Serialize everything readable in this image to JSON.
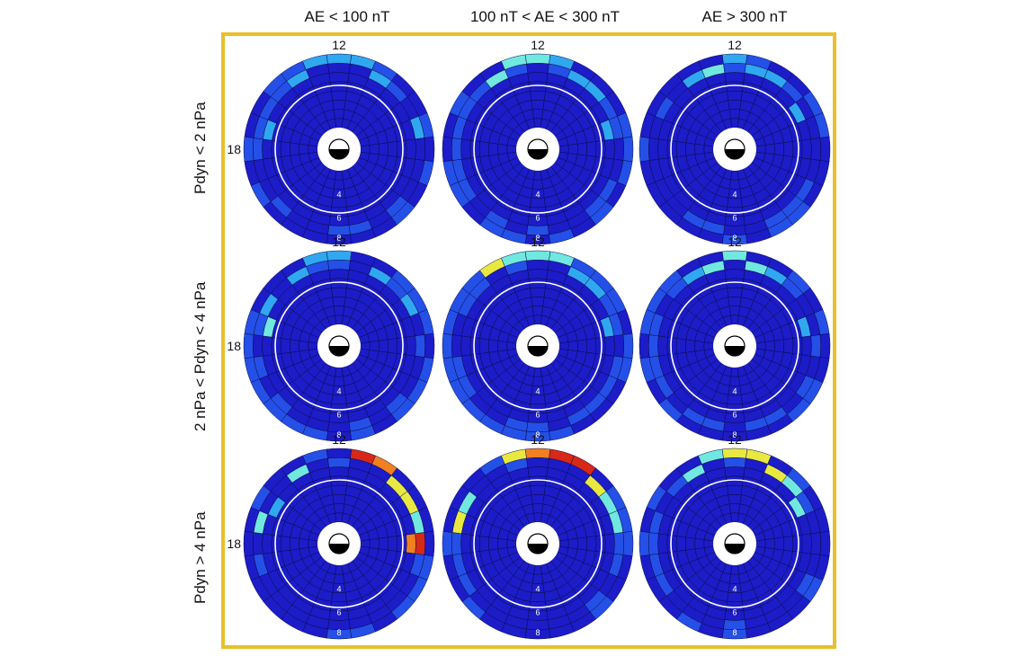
{
  "chart_data": {
    "type": "heatmap",
    "projection": "polar dial (MLT clock, 12 at top, 18 at left); white circle marks a reference ring",
    "columns": [
      "AE < 100 nT",
      "100 nT < AE < 300 nT",
      "AE > 300 nT"
    ],
    "rows": [
      "Pdyn < 2 nPa",
      "2 nPa < Pdyn < 4 nPa",
      "Pdyn > 4 nPa"
    ],
    "dial_labels": {
      "top": "12",
      "left": "18",
      "radial": [
        "4",
        "6",
        "8"
      ]
    },
    "colorscale": [
      "#1c1cc8",
      "#2450e8",
      "#30a8f0",
      "#70e8e0",
      "#e8e840",
      "#f08020",
      "#d82818"
    ],
    "colorscale_note": "levels 0 (low) to 6 (high)",
    "ring_count": 8,
    "sector_count": 24,
    "panels": [
      {
        "row": 0,
        "col": 0,
        "hotspots": [
          {
            "mlt": 12,
            "ring": 7,
            "level": 2
          },
          {
            "mlt": 11,
            "ring": 7,
            "level": 2
          },
          {
            "mlt": 13,
            "ring": 7,
            "level": 2
          },
          {
            "mlt": 10,
            "ring": 6,
            "level": 2
          },
          {
            "mlt": 14,
            "ring": 6,
            "level": 2
          },
          {
            "mlt": 17,
            "ring": 6,
            "level": 2
          },
          {
            "mlt": 7,
            "ring": 5,
            "level": 2
          }
        ]
      },
      {
        "row": 0,
        "col": 1,
        "hotspots": [
          {
            "mlt": 12,
            "ring": 7,
            "level": 3
          },
          {
            "mlt": 11,
            "ring": 7,
            "level": 3
          },
          {
            "mlt": 13,
            "ring": 7,
            "level": 2
          },
          {
            "mlt": 10,
            "ring": 6,
            "level": 3
          },
          {
            "mlt": 14,
            "ring": 6,
            "level": 2
          },
          {
            "mlt": 15,
            "ring": 6,
            "level": 2
          },
          {
            "mlt": 17,
            "ring": 5,
            "level": 2
          }
        ]
      },
      {
        "row": 0,
        "col": 2,
        "hotspots": [
          {
            "mlt": 12,
            "ring": 7,
            "level": 2
          },
          {
            "mlt": 11,
            "ring": 6,
            "level": 3
          },
          {
            "mlt": 13,
            "ring": 6,
            "level": 2
          },
          {
            "mlt": 14,
            "ring": 6,
            "level": 2
          },
          {
            "mlt": 10,
            "ring": 6,
            "level": 2
          },
          {
            "mlt": 16,
            "ring": 5,
            "level": 2
          }
        ]
      },
      {
        "row": 1,
        "col": 0,
        "hotspots": [
          {
            "mlt": 12,
            "ring": 7,
            "level": 2
          },
          {
            "mlt": 11,
            "ring": 7,
            "level": 2
          },
          {
            "mlt": 10,
            "ring": 6,
            "level": 2
          },
          {
            "mlt": 14,
            "ring": 6,
            "level": 2
          },
          {
            "mlt": 16,
            "ring": 6,
            "level": 2
          },
          {
            "mlt": 8,
            "ring": 6,
            "level": 2
          },
          {
            "mlt": 7,
            "ring": 5,
            "level": 3
          }
        ]
      },
      {
        "row": 1,
        "col": 1,
        "hotspots": [
          {
            "mlt": 12,
            "ring": 7,
            "level": 3
          },
          {
            "mlt": 11,
            "ring": 7,
            "level": 3
          },
          {
            "mlt": 10,
            "ring": 7,
            "level": 4
          },
          {
            "mlt": 13,
            "ring": 7,
            "level": 3
          },
          {
            "mlt": 14,
            "ring": 6,
            "level": 2
          },
          {
            "mlt": 15,
            "ring": 6,
            "level": 2
          },
          {
            "mlt": 17,
            "ring": 5,
            "level": 2
          }
        ]
      },
      {
        "row": 1,
        "col": 2,
        "hotspots": [
          {
            "mlt": 12,
            "ring": 7,
            "level": 3
          },
          {
            "mlt": 11,
            "ring": 6,
            "level": 3
          },
          {
            "mlt": 13,
            "ring": 6,
            "level": 3
          },
          {
            "mlt": 10,
            "ring": 6,
            "level": 2
          },
          {
            "mlt": 14,
            "ring": 6,
            "level": 2
          },
          {
            "mlt": 17,
            "ring": 5,
            "level": 2
          }
        ]
      },
      {
        "row": 2,
        "col": 0,
        "hotspots": [
          {
            "mlt": 13,
            "ring": 7,
            "level": 6
          },
          {
            "mlt": 14,
            "ring": 7,
            "level": 5
          },
          {
            "mlt": 15,
            "ring": 6,
            "level": 4
          },
          {
            "mlt": 16,
            "ring": 6,
            "level": 4
          },
          {
            "mlt": 17,
            "ring": 6,
            "level": 3
          },
          {
            "mlt": 18,
            "ring": 6,
            "level": 6
          },
          {
            "mlt": 18,
            "ring": 5,
            "level": 5
          },
          {
            "mlt": 10,
            "ring": 6,
            "level": 3
          },
          {
            "mlt": 7,
            "ring": 6,
            "level": 3
          },
          {
            "mlt": 8,
            "ring": 5,
            "level": 2
          }
        ]
      },
      {
        "row": 2,
        "col": 1,
        "hotspots": [
          {
            "mlt": 13,
            "ring": 7,
            "level": 6
          },
          {
            "mlt": 14,
            "ring": 7,
            "level": 6
          },
          {
            "mlt": 12,
            "ring": 7,
            "level": 5
          },
          {
            "mlt": 15,
            "ring": 6,
            "level": 4
          },
          {
            "mlt": 16,
            "ring": 6,
            "level": 3
          },
          {
            "mlt": 17,
            "ring": 6,
            "level": 3
          },
          {
            "mlt": 11,
            "ring": 7,
            "level": 4
          },
          {
            "mlt": 8,
            "ring": 6,
            "level": 3
          },
          {
            "mlt": 7,
            "ring": 6,
            "level": 4
          }
        ]
      },
      {
        "row": 2,
        "col": 2,
        "hotspots": [
          {
            "mlt": 12,
            "ring": 7,
            "level": 4
          },
          {
            "mlt": 13,
            "ring": 7,
            "level": 4
          },
          {
            "mlt": 11,
            "ring": 7,
            "level": 3
          },
          {
            "mlt": 14,
            "ring": 6,
            "level": 4
          },
          {
            "mlt": 15,
            "ring": 6,
            "level": 3
          },
          {
            "mlt": 10,
            "ring": 6,
            "level": 3
          },
          {
            "mlt": 16,
            "ring": 5,
            "level": 3
          }
        ]
      }
    ]
  }
}
